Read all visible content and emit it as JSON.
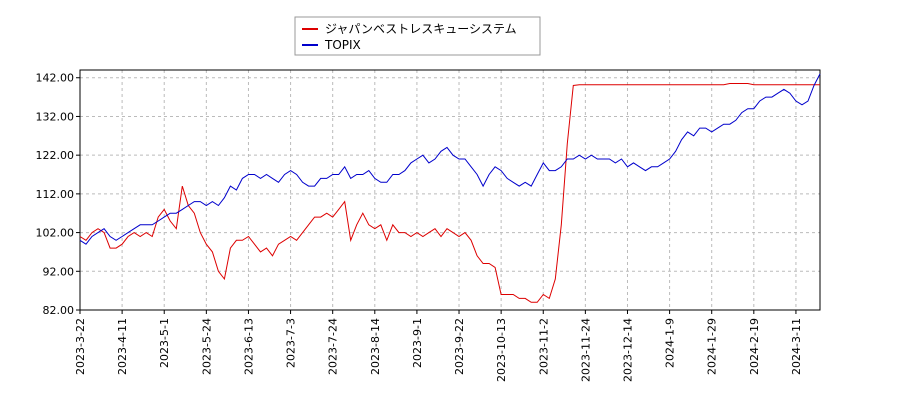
{
  "chart_data": {
    "type": "line",
    "categories": [
      "2023-3-22",
      null,
      null,
      null,
      null,
      null,
      null,
      "2023-4-11",
      null,
      null,
      null,
      null,
      null,
      null,
      "2023-5-1",
      null,
      null,
      null,
      null,
      null,
      null,
      "2023-5-24",
      null,
      null,
      null,
      null,
      null,
      null,
      "2023-6-13",
      null,
      null,
      null,
      null,
      null,
      null,
      "2023-7-3",
      null,
      null,
      null,
      null,
      null,
      null,
      "2023-7-24",
      null,
      null,
      null,
      null,
      null,
      null,
      "2023-8-14",
      null,
      null,
      null,
      null,
      null,
      null,
      "2023-9-1",
      null,
      null,
      null,
      null,
      null,
      null,
      "2023-9-22",
      null,
      null,
      null,
      null,
      null,
      null,
      "2023-10-13",
      null,
      null,
      null,
      null,
      null,
      null,
      "2023-11-2",
      null,
      null,
      null,
      null,
      null,
      null,
      "2023-11-24",
      null,
      null,
      null,
      null,
      null,
      null,
      "2023-12-14",
      null,
      null,
      null,
      null,
      null,
      null,
      "2024-1-9",
      null,
      null,
      null,
      null,
      null,
      null,
      "2024-1-29",
      null,
      null,
      null,
      null,
      null,
      null,
      "2024-2-19",
      null,
      null,
      null,
      null,
      null,
      null,
      "2024-3-11",
      null,
      null,
      null,
      null
    ],
    "series": [
      {
        "name": "ジャパンベストレスキューシステム",
        "color": "#dd0000",
        "values": [
          101,
          100,
          102,
          103,
          102,
          98,
          98,
          99,
          101,
          102,
          101,
          102,
          101,
          106,
          108,
          105,
          103,
          114,
          109,
          107,
          102,
          99,
          97,
          92,
          90,
          98,
          100,
          100,
          101,
          99,
          97,
          98,
          96,
          99,
          100,
          101,
          100,
          102,
          104,
          106,
          106,
          107,
          106,
          108,
          110,
          100,
          104,
          107,
          104,
          103,
          104,
          100,
          104,
          102,
          102,
          101,
          102,
          101,
          102,
          103,
          101,
          103,
          102,
          101,
          102,
          100,
          96,
          94,
          94,
          93,
          86,
          86,
          86,
          85,
          85,
          84,
          84,
          86,
          85,
          90,
          104,
          125,
          140,
          140.2,
          140.2,
          140.2,
          140.2,
          140.2,
          140.2,
          140.2,
          140.2,
          140.2,
          140.2,
          140.2,
          140.2,
          140.2,
          140.2,
          140.2,
          140.2,
          140.2,
          140.2,
          140.2,
          140.2,
          140.2,
          140.2,
          140.2,
          140.2,
          140.2,
          140.5,
          140.5,
          140.5,
          140.5,
          140.2,
          140.2,
          140.2,
          140.2,
          140.2,
          140.2,
          140.2,
          140.2,
          140.2,
          140.2,
          140.2,
          140.2
        ]
      },
      {
        "name": "TOPIX",
        "color": "#0000cc",
        "values": [
          100,
          99,
          101,
          102,
          103,
          101,
          100,
          101,
          102,
          103,
          104,
          104,
          104,
          105,
          106,
          107,
          107,
          108,
          109,
          110,
          110,
          109,
          110,
          109,
          111,
          114,
          113,
          116,
          117,
          117,
          116,
          117,
          116,
          115,
          117,
          118,
          117,
          115,
          114,
          114,
          116,
          116,
          117,
          117,
          119,
          116,
          117,
          117,
          118,
          116,
          115,
          115,
          117,
          117,
          118,
          120,
          121,
          122,
          120,
          121,
          123,
          124,
          122,
          121,
          121,
          119,
          117,
          114,
          117,
          119,
          118,
          116,
          115,
          114,
          115,
          114,
          117,
          120,
          118,
          118,
          119,
          121,
          121,
          122,
          121,
          122,
          121,
          121,
          121,
          120,
          121,
          119,
          120,
          119,
          118,
          119,
          119,
          120,
          121,
          123,
          126,
          128,
          127,
          129,
          129,
          128,
          129,
          130,
          130,
          131,
          133,
          134,
          134,
          136,
          137,
          137,
          138,
          139,
          138,
          136,
          135,
          136,
          140,
          143
        ]
      }
    ],
    "ylim": [
      82,
      144
    ],
    "yticks": [
      {
        "value": 82,
        "label": "82.00"
      },
      {
        "value": 92,
        "label": "92.00"
      },
      {
        "value": 102,
        "label": "102.00"
      },
      {
        "value": 112,
        "label": "112.00"
      },
      {
        "value": 122,
        "label": "122.00"
      },
      {
        "value": 132,
        "label": "132.00"
      },
      {
        "value": 142,
        "label": "142.00"
      }
    ],
    "grid": true
  }
}
